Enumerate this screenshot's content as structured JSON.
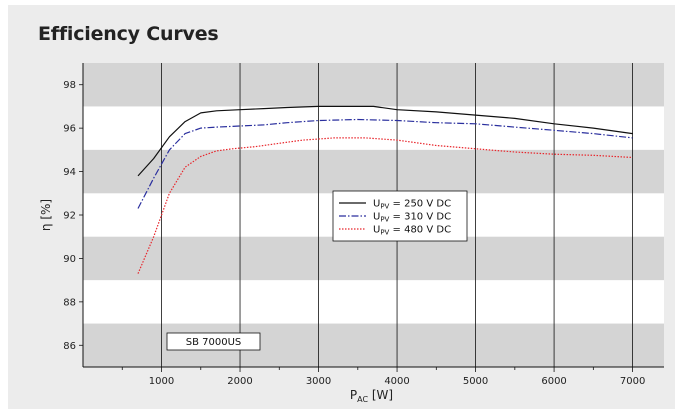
{
  "title": "Efficiency Curves",
  "chart_data": {
    "type": "line",
    "title": "Efficiency Curves",
    "xlabel": {
      "main": "P",
      "sub": "AC",
      "unit": " [W]"
    },
    "ylabel": "η [%]",
    "xlim": [
      0,
      7400
    ],
    "ylim": [
      85,
      99
    ],
    "xticks": [
      1000,
      2000,
      3000,
      4000,
      5000,
      6000,
      7000
    ],
    "yticks": [
      86,
      88,
      90,
      92,
      94,
      96,
      98
    ],
    "grid": true,
    "legend_position": "center",
    "annotation": "SB 7000US",
    "series": [
      {
        "name": "U_PV = 250 V DC",
        "label_main": "U",
        "label_sub": "PV",
        "label_rest": " = 250 V DC",
        "color": "#111111",
        "dash": "",
        "x": [
          700,
          900,
          1100,
          1300,
          1500,
          1700,
          2000,
          2300,
          2600,
          3000,
          3500,
          3700,
          4000,
          4500,
          5000,
          5500,
          6000,
          6500,
          7000
        ],
        "y": [
          93.8,
          94.6,
          95.6,
          96.3,
          96.7,
          96.8,
          96.85,
          96.9,
          96.95,
          97.0,
          97.0,
          97.0,
          96.85,
          96.75,
          96.6,
          96.45,
          96.2,
          96.0,
          95.75
        ]
      },
      {
        "name": "U_PV = 310 V DC",
        "label_main": "U",
        "label_sub": "PV",
        "label_rest": " = 310 V DC",
        "color": "#2a2f9e",
        "dash": "7,2,1.5,2",
        "x": [
          700,
          900,
          1100,
          1300,
          1500,
          1700,
          2000,
          2300,
          2600,
          3000,
          3500,
          4000,
          4500,
          5000,
          5500,
          6000,
          6500,
          7000
        ],
        "y": [
          92.3,
          93.7,
          95.0,
          95.75,
          96.0,
          96.05,
          96.1,
          96.15,
          96.25,
          96.35,
          96.4,
          96.35,
          96.25,
          96.2,
          96.05,
          95.9,
          95.75,
          95.55
        ]
      },
      {
        "name": "U_PV = 480 V DC",
        "label_main": "U",
        "label_sub": "PV",
        "label_rest": " = 480 V DC",
        "color": "#e8262c",
        "dash": "1.5,1.5",
        "x": [
          700,
          900,
          1100,
          1300,
          1500,
          1700,
          1900,
          2200,
          2500,
          2800,
          3200,
          3600,
          4000,
          4500,
          5000,
          5500,
          6000,
          6500,
          7000
        ],
        "y": [
          89.3,
          91.0,
          93.0,
          94.2,
          94.7,
          94.95,
          95.05,
          95.15,
          95.3,
          95.45,
          95.55,
          95.55,
          95.45,
          95.2,
          95.05,
          94.9,
          94.8,
          94.75,
          94.65
        ]
      }
    ]
  }
}
